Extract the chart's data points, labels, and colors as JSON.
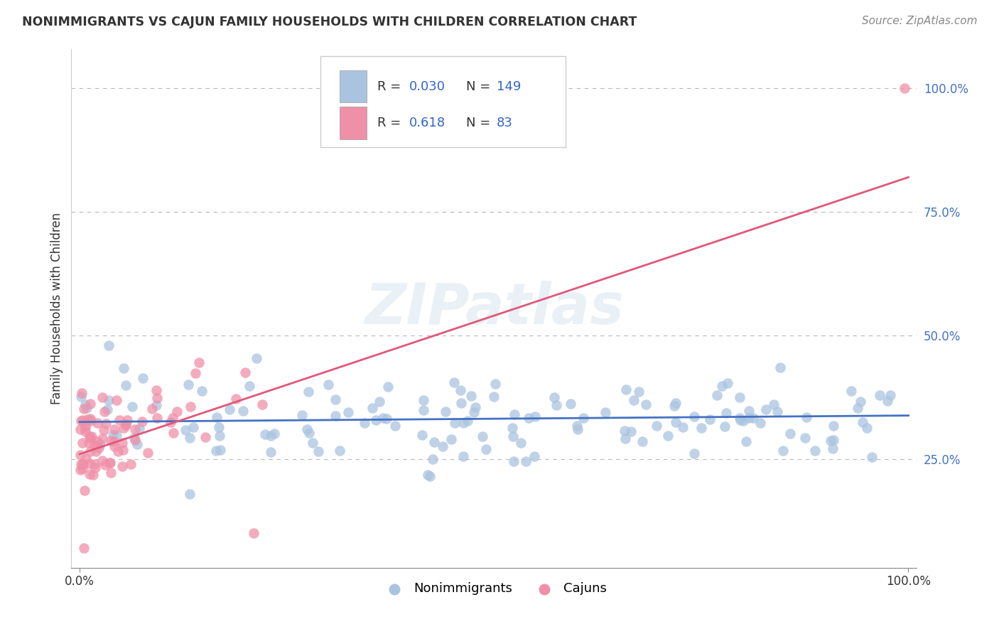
{
  "title": "NONIMMIGRANTS VS CAJUN FAMILY HOUSEHOLDS WITH CHILDREN CORRELATION CHART",
  "source": "Source: ZipAtlas.com",
  "watermark": "ZIPatlas",
  "ylabel": "Family Households with Children",
  "nonimmigrant_R": 0.03,
  "nonimmigrant_N": 149,
  "cajun_R": 0.618,
  "cajun_N": 83,
  "nonimmigrant_color": "#aac4e0",
  "nonimmigrant_line_color": "#4472c4",
  "cajun_color": "#f090a8",
  "cajun_line_color": "#e05878",
  "background_color": "#ffffff",
  "grid_color": "#b8b8b8",
  "legend_color": "#3366cc",
  "ytick_values": [
    0.25,
    0.5,
    0.75,
    1.0
  ],
  "ytick_labels": [
    "25.0%",
    "50.0%",
    "75.0%",
    "100.0%"
  ],
  "xlim": [
    -0.01,
    1.01
  ],
  "ylim": [
    0.03,
    1.08
  ],
  "nonimm_line_y0": 0.325,
  "nonimm_line_y1": 0.338,
  "cajun_line_y0": 0.26,
  "cajun_line_y1": 0.82
}
